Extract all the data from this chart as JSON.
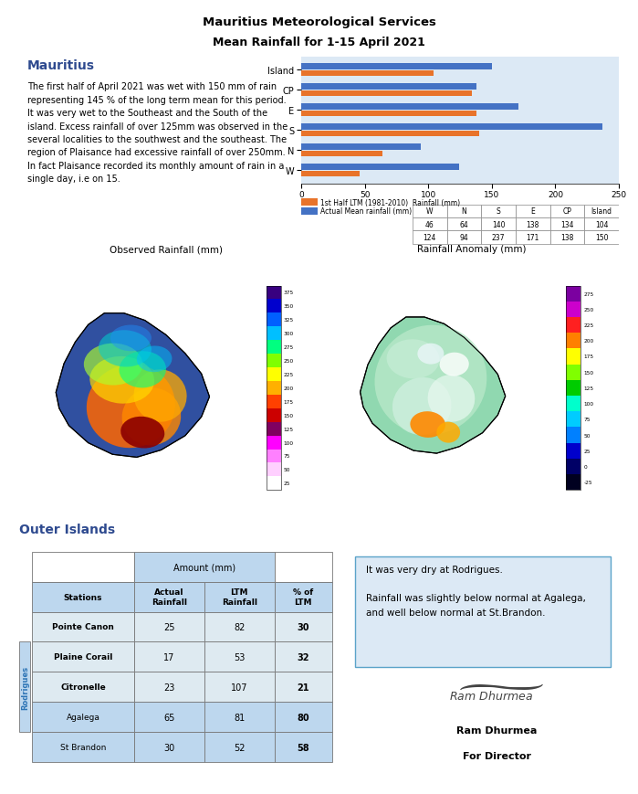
{
  "title1": "Mauritius Meteorological Services",
  "title2": "Mean Rainfall for 1-15 April 2021",
  "mauritius_title": "Mauritius",
  "mauritius_text": "The first half of April 2021 was wet with 150 mm of rain\nrepresenting 145 % of the long term mean for this period.\nIt was very wet to the Southeast and the South of the\nisland. Excess rainfall of over 125mm was observed in the\nseveral localities to the southwest and the southeast. The\nregion of Plaisance had excessive rainfall of over 250mm.\nIn fact Plaisance recorded its monthly amount of rain in a\nsingle day, i.e on 15.",
  "bar_categories": [
    "Island",
    "CP",
    "E",
    "S",
    "N",
    "W"
  ],
  "ltm_values": [
    104,
    134,
    138,
    140,
    64,
    46
  ],
  "actual_values": [
    150,
    138,
    171,
    237,
    94,
    124
  ],
  "ltm_color": "#E8732A",
  "actual_color": "#4472C4",
  "bar_xlim": [
    0,
    250
  ],
  "bar_xticks": [
    0,
    50,
    100,
    150,
    200,
    250
  ],
  "table_cols": [
    "W",
    "N",
    "S",
    "E",
    "CP",
    "Island"
  ],
  "ltm_row": [
    46,
    64,
    140,
    138,
    134,
    104
  ],
  "actual_row": [
    124,
    94,
    237,
    171,
    138,
    150
  ],
  "outer_islands_title": "Outer Islands",
  "outer_table_rows": [
    [
      "Pointe Canon",
      "25",
      "82",
      "30"
    ],
    [
      "Plaine Corail",
      "17",
      "53",
      "32"
    ],
    [
      "Citronelle",
      "23",
      "107",
      "21"
    ],
    [
      "Agalega",
      "65",
      "81",
      "80"
    ],
    [
      "St Brandon",
      "30",
      "52",
      "58"
    ]
  ],
  "rodrigues_rows": [
    0,
    1,
    2
  ],
  "note_text": "It was very dry at Rodrigues.\n\nRainfall was slightly below normal at Agalega,\nand well below normal at St.Brandon.",
  "sign_name": "Ram Dhurmea",
  "sign_title": "For Director",
  "obs_rainfall_label": "Observed Rainfall (mm)",
  "rainfall_anomaly_label": "Rainfall Anomaly (mm)",
  "header_color": "#BDD7EE",
  "row_color": "#DEEAF1",
  "rodrigues_label_color": "#2E75B6",
  "note_bg": "#DCE9F5",
  "note_border": "#5BA3C9",
  "bg_color": "#FFFFFF",
  "bar_bg": "#DCE9F5",
  "mauritius_color": "#2E4A8F",
  "outer_color": "#2E4A8F"
}
